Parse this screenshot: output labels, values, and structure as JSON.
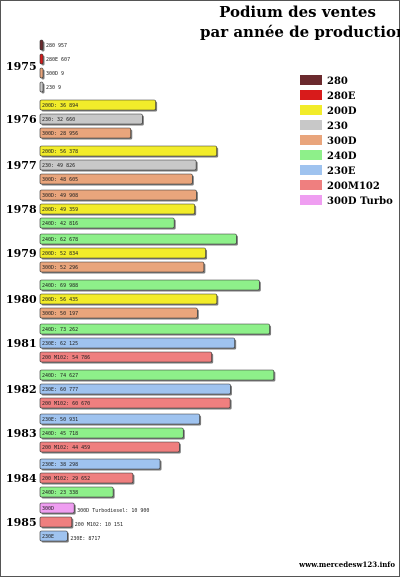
{
  "title_line1": "Podium des ventes",
  "title_line2": "par année de production",
  "source": "www.mercedesw123.info",
  "models": [
    {
      "name": "280",
      "color": "#6b2a2e"
    },
    {
      "name": "280E",
      "color": "#d81b1b"
    },
    {
      "name": "200D",
      "color": "#f2ec2a"
    },
    {
      "name": "230",
      "color": "#c8c8c8"
    },
    {
      "name": "300D",
      "color": "#e9a57c"
    },
    {
      "name": "240D",
      "color": "#8ef08a"
    },
    {
      "name": "230E",
      "color": "#9fc3ef"
    },
    {
      "name": "200M102",
      "color": "#ef7f7f"
    },
    {
      "name": "300D Turbo",
      "color": "#ef9ef1"
    }
  ],
  "chart_data": {
    "type": "bar",
    "orientation": "horizontal",
    "title": "Podium des ventes par année de production",
    "x_range": [
      0,
      80000
    ],
    "grid": false,
    "legend_position": "top-right",
    "groups": [
      {
        "year": "1975",
        "bars": [
          {
            "model": "280",
            "value": 957,
            "label": "280 957"
          },
          {
            "model": "280E",
            "value": 607,
            "label": "280E 607"
          },
          {
            "model": "300D",
            "value": 9,
            "label": "300D 9"
          },
          {
            "model": "230",
            "value": 9,
            "label": "230 9"
          }
        ]
      },
      {
        "year": "1976",
        "bars": [
          {
            "model": "200D",
            "value": 36894,
            "label": "200D: 36 894"
          },
          {
            "model": "230",
            "value": 32660,
            "label": "230: 32 660"
          },
          {
            "model": "300D",
            "value": 28956,
            "label": "300D: 28 956"
          }
        ]
      },
      {
        "year": "1977",
        "bars": [
          {
            "model": "200D",
            "value": 56378,
            "label": "200D: 56 378"
          },
          {
            "model": "230",
            "value": 49826,
            "label": "230: 49 826"
          },
          {
            "model": "300D",
            "value": 48605,
            "label": "300D: 48 605"
          }
        ]
      },
      {
        "year": "1978",
        "bars": [
          {
            "model": "300D",
            "value": 49908,
            "label": "300D: 49 908"
          },
          {
            "model": "200D",
            "value": 49359,
            "label": "200D: 49 359"
          },
          {
            "model": "240D",
            "value": 42816,
            "label": "240D: 42 816"
          }
        ]
      },
      {
        "year": "1979",
        "bars": [
          {
            "model": "240D",
            "value": 62678,
            "label": "240D: 62 678"
          },
          {
            "model": "200D",
            "value": 52834,
            "label": "200D: 52 834"
          },
          {
            "model": "300D",
            "value": 52296,
            "label": "300D: 52 296"
          }
        ]
      },
      {
        "year": "1980",
        "bars": [
          {
            "model": "240D",
            "value": 69988,
            "label": "240D: 69 988"
          },
          {
            "model": "200D",
            "value": 56435,
            "label": "200D: 56 435"
          },
          {
            "model": "300D",
            "value": 50197,
            "label": "300D: 50 197"
          }
        ]
      },
      {
        "year": "1981",
        "bars": [
          {
            "model": "240D",
            "value": 73262,
            "label": "240D: 73 262"
          },
          {
            "model": "230E",
            "value": 62125,
            "label": "230E: 62 125"
          },
          {
            "model": "200M102",
            "value": 54786,
            "label": "200 M102: 54 786"
          }
        ]
      },
      {
        "year": "1982",
        "bars": [
          {
            "model": "240D",
            "value": 74627,
            "label": "240D: 74 627"
          },
          {
            "model": "230E",
            "value": 60777,
            "label": "230E: 60 777"
          },
          {
            "model": "200M102",
            "value": 60670,
            "label": "200 M102: 60 670"
          }
        ]
      },
      {
        "year": "1983",
        "bars": [
          {
            "model": "230E",
            "value": 50931,
            "label": "230E: 50 931"
          },
          {
            "model": "240D",
            "value": 45718,
            "label": "240D: 45 718"
          },
          {
            "model": "200M102",
            "value": 44459,
            "label": "200 M102: 44 459"
          }
        ]
      },
      {
        "year": "1984",
        "bars": [
          {
            "model": "230E",
            "value": 38298,
            "label": "230E: 38 298"
          },
          {
            "model": "200M102",
            "value": 29652,
            "label": "200 M102: 29 652"
          },
          {
            "model": "240D",
            "value": 23338,
            "label": "240D: 23 338"
          }
        ]
      },
      {
        "year": "1985",
        "bars": [
          {
            "model": "300D Turbo",
            "value": 10900,
            "label": "300D Turbodiesel: 10 900",
            "inner_label": "300D",
            "label_outside": true
          },
          {
            "model": "200M102",
            "value": 10151,
            "label": "200 M102: 10 151",
            "label_outside": true
          },
          {
            "model": "230E",
            "value": 8717,
            "label": "230E: 8717",
            "inner_label": "230E",
            "label_outside": true
          }
        ]
      }
    ]
  }
}
